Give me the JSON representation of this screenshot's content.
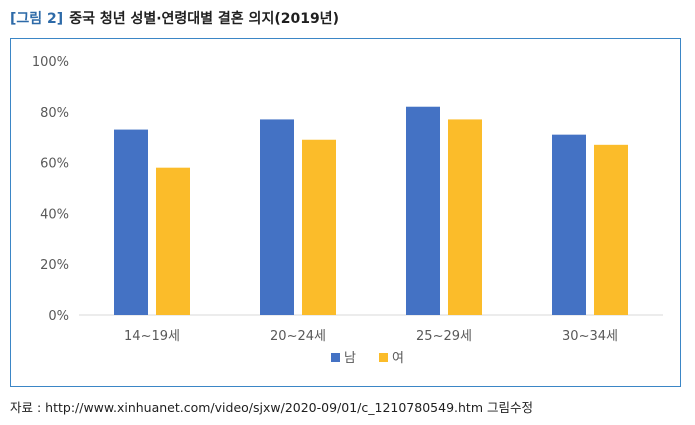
{
  "figure": {
    "number_label": "[그림 2]",
    "title": "중국 청년 성별·연령대별 결혼 의지(2019년)"
  },
  "source": "자료 : http://www.xinhuanet.com/video/sjxw/2020-09/01/c_1210780549.htm 그림수정",
  "chart_data": {
    "type": "bar",
    "categories": [
      "14~19세",
      "20~24세",
      "25~29세",
      "30~34세"
    ],
    "series": [
      {
        "name": "남",
        "color": "#4472c4",
        "values": [
          73,
          77,
          82,
          71
        ]
      },
      {
        "name": "여",
        "color": "#fbbc2a",
        "values": [
          58,
          69,
          77,
          67
        ]
      }
    ],
    "ylim": [
      0,
      100
    ],
    "yticks": [
      0,
      20,
      40,
      60,
      80,
      100
    ],
    "ytick_labels": [
      "0%",
      "20%",
      "40%",
      "60%",
      "80%",
      "100%"
    ],
    "grid": false,
    "legend_position": "bottom"
  }
}
